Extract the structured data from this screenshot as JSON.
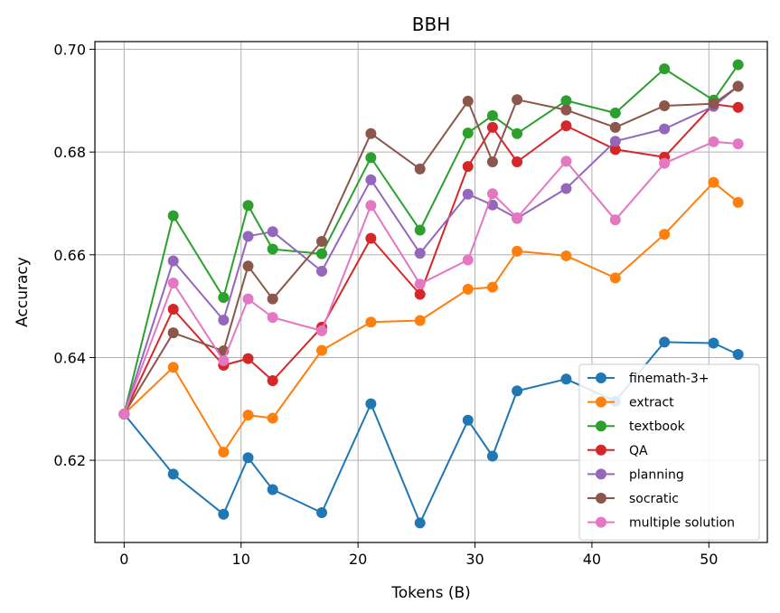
{
  "chart_data": {
    "type": "line",
    "title": "BBH",
    "xlabel": "Tokens (B)",
    "ylabel": "Accuracy",
    "xlim": [
      -2.5,
      55
    ],
    "ylim": [
      0.604,
      0.7015
    ],
    "xticks": [
      0,
      10,
      20,
      30,
      40,
      50
    ],
    "xtick_labels": [
      "0",
      "10",
      "20",
      "30",
      "40",
      "50"
    ],
    "yticks": [
      0.62,
      0.64,
      0.66,
      0.68,
      0.7
    ],
    "ytick_labels": [
      "0.62",
      "0.64",
      "0.66",
      "0.68",
      "0.70"
    ],
    "grid": true,
    "legend_position": "lower-right",
    "series": [
      {
        "name": "finemath-3+",
        "color": "#1f77b4",
        "x": [
          0,
          4.2,
          8.5,
          10.6,
          12.7,
          16.9,
          21.1,
          25.3,
          29.4,
          31.5,
          33.6,
          37.8,
          42.0,
          46.2,
          50.4,
          52.5
        ],
        "y": [
          0.629,
          0.6173,
          0.6095,
          0.6205,
          0.6143,
          0.6098,
          0.631,
          0.6078,
          0.6278,
          0.6208,
          0.6335,
          0.6358,
          0.6315,
          0.643,
          0.6428,
          0.6406
        ]
      },
      {
        "name": "extract",
        "color": "#ff7f0e",
        "x": [
          0,
          4.2,
          8.5,
          10.6,
          12.7,
          16.9,
          21.1,
          25.3,
          29.4,
          31.5,
          33.6,
          37.8,
          42.0,
          46.2,
          50.4,
          52.5
        ],
        "y": [
          0.629,
          0.6381,
          0.6216,
          0.6288,
          0.6282,
          0.6414,
          0.6469,
          0.6472,
          0.6533,
          0.6537,
          0.6607,
          0.6598,
          0.6555,
          0.664,
          0.6741,
          0.6702
        ]
      },
      {
        "name": "textbook",
        "color": "#2ca02c",
        "x": [
          0,
          4.2,
          8.5,
          10.6,
          12.7,
          16.9,
          21.1,
          25.3,
          29.4,
          31.5,
          33.6,
          37.8,
          42.0,
          46.2,
          50.4,
          52.5
        ],
        "y": [
          0.629,
          0.6676,
          0.6517,
          0.6696,
          0.6611,
          0.6602,
          0.6789,
          0.6648,
          0.6837,
          0.6871,
          0.6836,
          0.69,
          0.6876,
          0.6962,
          0.6901,
          0.697
        ]
      },
      {
        "name": "QA",
        "color": "#d62728",
        "x": [
          0,
          4.2,
          8.5,
          10.6,
          12.7,
          16.9,
          21.1,
          25.3,
          29.4,
          31.5,
          33.6,
          37.8,
          42.0,
          46.2,
          50.4,
          52.5
        ],
        "y": [
          0.629,
          0.6494,
          0.6385,
          0.6398,
          0.6355,
          0.6459,
          0.6632,
          0.6523,
          0.6772,
          0.6848,
          0.6781,
          0.6851,
          0.6805,
          0.679,
          0.6893,
          0.6887
        ]
      },
      {
        "name": "planning",
        "color": "#9467bd",
        "x": [
          0,
          4.2,
          8.5,
          10.6,
          12.7,
          16.9,
          21.1,
          25.3,
          29.4,
          31.5,
          33.6,
          37.8,
          42.0,
          46.2,
          50.4,
          52.5
        ],
        "y": [
          0.629,
          0.6588,
          0.6473,
          0.6636,
          0.6645,
          0.6568,
          0.6746,
          0.6603,
          0.6718,
          0.6697,
          0.6671,
          0.6729,
          0.6821,
          0.6845,
          0.6889,
          0.6928
        ]
      },
      {
        "name": "socratic",
        "color": "#8c564b",
        "x": [
          0,
          4.2,
          8.5,
          10.6,
          12.7,
          16.9,
          21.1,
          25.3,
          29.4,
          31.5,
          33.6,
          37.8,
          42.0,
          46.2,
          50.4,
          52.5
        ],
        "y": [
          0.629,
          0.6448,
          0.6413,
          0.6578,
          0.6514,
          0.6626,
          0.6836,
          0.6767,
          0.6899,
          0.6781,
          0.6902,
          0.6882,
          0.6848,
          0.689,
          0.6894,
          0.6928
        ]
      },
      {
        "name": "multiple solution",
        "color": "#e377c2",
        "x": [
          0,
          4.2,
          8.5,
          10.6,
          12.7,
          16.9,
          21.1,
          25.3,
          29.4,
          31.5,
          33.6,
          37.8,
          42.0,
          46.2,
          50.4,
          52.5
        ],
        "y": [
          0.629,
          0.6545,
          0.6394,
          0.6514,
          0.6478,
          0.6452,
          0.6696,
          0.6543,
          0.659,
          0.6719,
          0.6672,
          0.6782,
          0.6668,
          0.6778,
          0.682,
          0.6816
        ]
      }
    ]
  }
}
